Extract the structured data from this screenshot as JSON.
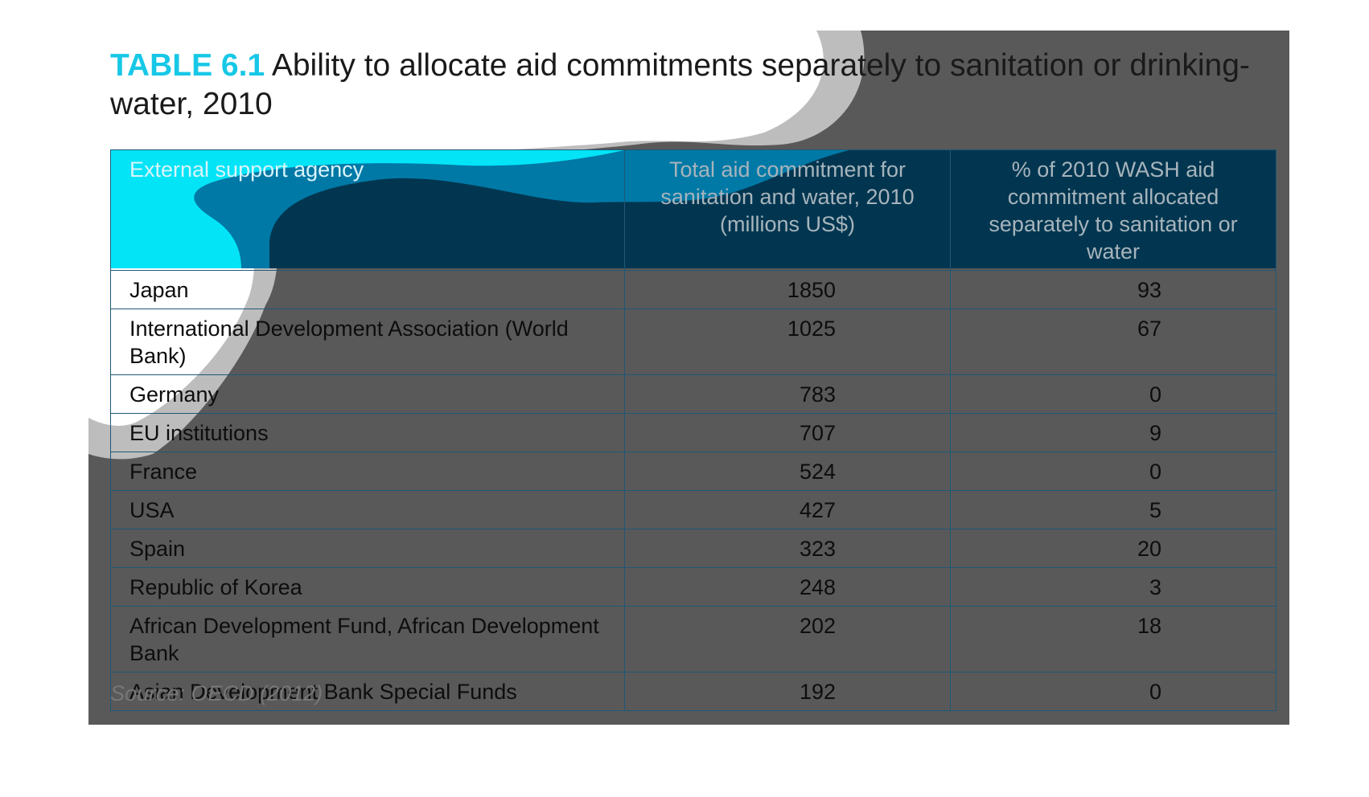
{
  "title": {
    "label": "TABLE 6.1",
    "text": "Ability to allocate aid commitments separately to sanitation or drinking-water, 2010"
  },
  "table": {
    "headers": [
      "External support agency",
      "Total aid commitment for sanitation and water, 2010 (millions US$)",
      "% of 2010 WASH aid commitment allocated separately to sanitation or water"
    ],
    "rows": [
      {
        "agency": "Japan",
        "total": "1850",
        "percent": "93"
      },
      {
        "agency": "International Development Association (World Bank)",
        "total": "1025",
        "percent": "67"
      },
      {
        "agency": "Germany",
        "total": "783",
        "percent": "0"
      },
      {
        "agency": "EU institutions",
        "total": "707",
        "percent": "9"
      },
      {
        "agency": "France",
        "total": "524",
        "percent": "0"
      },
      {
        "agency": "USA",
        "total": "427",
        "percent": "5"
      },
      {
        "agency": "Spain",
        "total": "323",
        "percent": "20"
      },
      {
        "agency": "Republic of Korea",
        "total": "248",
        "percent": "3"
      },
      {
        "agency": "African Development Fund, African Development Bank",
        "total": "202",
        "percent": "18"
      },
      {
        "agency": "Asian Development Bank Special Funds",
        "total": "192",
        "percent": "0"
      }
    ]
  },
  "source": "Source: OECD (2012)",
  "colors": {
    "panel": "#595959",
    "header_dark": "#023650",
    "wave_mid": "#0079a6",
    "wave_cyan": "#04e4f7",
    "title_accent": "#17c8e6",
    "border": "#1f5876"
  }
}
